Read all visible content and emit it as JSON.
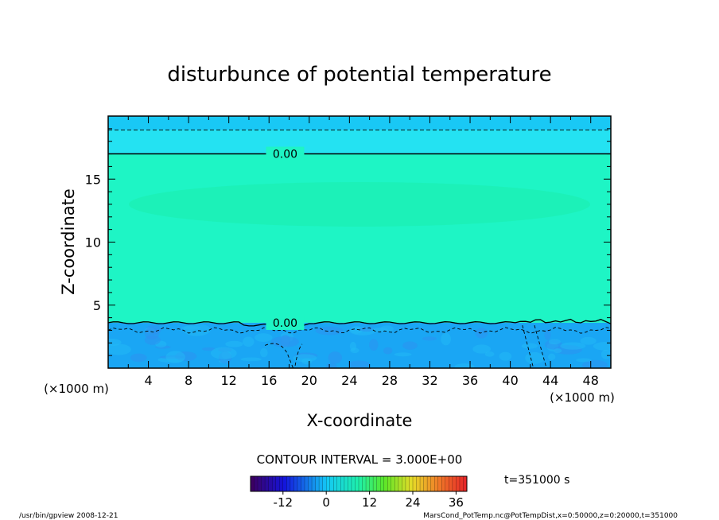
{
  "chart_data": {
    "type": "heatmap",
    "title": "disturbunce of potential temperature",
    "xlabel": "X-coordinate",
    "ylabel": "Z-coordinate",
    "xlim": [
      0,
      50
    ],
    "ylim": [
      0,
      20
    ],
    "x_ticks": [
      4,
      8,
      12,
      16,
      20,
      24,
      28,
      32,
      36,
      40,
      44,
      48
    ],
    "y_ticks": [
      5,
      10,
      15
    ],
    "x_unit": "(×1000 m)",
    "y_unit": "(×1000 m)",
    "bands": [
      {
        "z_from": 18.9,
        "z_to": 20.0,
        "color": "#19c8f5"
      },
      {
        "z_from": 17.0,
        "z_to": 18.9,
        "color": "#24e2f2"
      },
      {
        "z_from": 3.6,
        "z_to": 17.0,
        "color": "#1ef5c5"
      },
      {
        "z_from": 0.0,
        "z_to": 3.6,
        "color": "#1aa6f4"
      }
    ],
    "contours": [
      {
        "z": 17.0,
        "label": "0.00",
        "label_x": 17.6,
        "style": "solid"
      },
      {
        "z": 3.6,
        "label": "0.00",
        "label_x": 17.6,
        "style": "solid"
      },
      {
        "z": 18.9,
        "style": "dashed"
      },
      {
        "z": 3.0,
        "style": "dashed"
      }
    ],
    "contour_interval_label": "CONTOUR INTERVAL = 3.000E+00",
    "colorbar": {
      "ticks": [
        "-12",
        "0",
        "12",
        "24",
        "36"
      ],
      "tick_values": [
        -12,
        0,
        12,
        24,
        36
      ],
      "range": [
        -21,
        39
      ]
    },
    "time_label": "t=351000 s"
  },
  "footer": {
    "left": "/usr/bin/gpview   2008-12-21",
    "right": "MarsCond_PotTemp.nc@PotTempDist,x=0:50000,z=0:20000,t=351000"
  }
}
